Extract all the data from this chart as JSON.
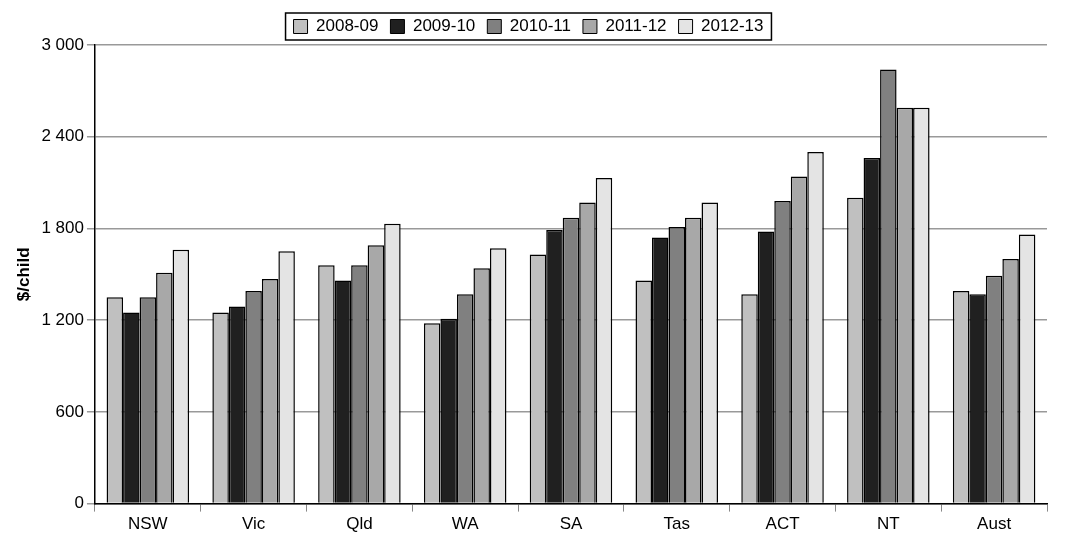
{
  "chart_data": {
    "type": "bar",
    "ylabel": "$/child",
    "categories": [
      "NSW",
      "Vic",
      "Qld",
      "WA",
      "SA",
      "Tas",
      "ACT",
      "NT",
      "Aust"
    ],
    "series": [
      {
        "name": "2008-09",
        "color": "#c0c0c0",
        "values": [
          1350,
          1250,
          1560,
          1180,
          1630,
          1460,
          1370,
          2000,
          1390
        ]
      },
      {
        "name": "2009-10",
        "color": "#202020",
        "values": [
          1250,
          1290,
          1460,
          1210,
          1790,
          1740,
          1780,
          2260,
          1370
        ]
      },
      {
        "name": "2010-11",
        "color": "#808080",
        "values": [
          1350,
          1390,
          1560,
          1370,
          1870,
          1810,
          1980,
          2840,
          1490
        ]
      },
      {
        "name": "2011-12",
        "color": "#a8a8a8",
        "values": [
          1510,
          1470,
          1690,
          1540,
          1970,
          1870,
          2140,
          2590,
          1600
        ]
      },
      {
        "name": "2012-13",
        "color": "#e4e4e4",
        "values": [
          1660,
          1650,
          1830,
          1670,
          2130,
          1970,
          2300,
          2590,
          1760
        ]
      }
    ],
    "ylim": [
      0,
      3000
    ],
    "yticks": [
      {
        "value": 0,
        "label": "0"
      },
      {
        "value": 600,
        "label": "600"
      },
      {
        "value": 1200,
        "label": "1 200"
      },
      {
        "value": 1800,
        "label": "1 800"
      },
      {
        "value": 2400,
        "label": "2 400"
      },
      {
        "value": 3000,
        "label": "3 000"
      }
    ],
    "grid": "y",
    "legend": "top"
  }
}
